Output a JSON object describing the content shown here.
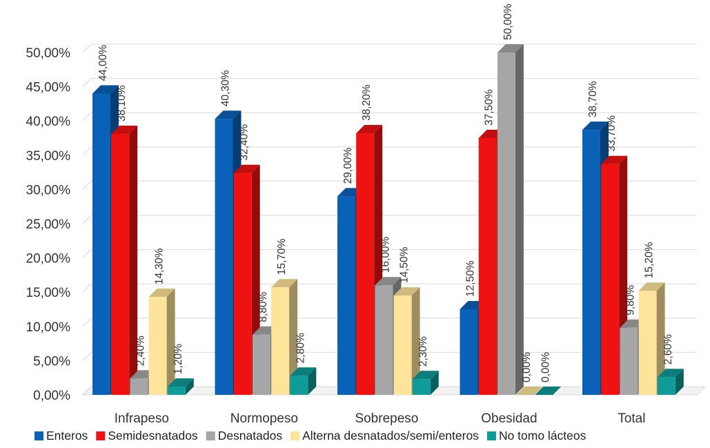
{
  "chart_data": {
    "type": "bar",
    "categories": [
      "Infrapeso",
      "Normopeso",
      "Sobrepeso",
      "Obesidad",
      "Total"
    ],
    "series": [
      {
        "name": "Enteros",
        "color": "#0a62b8",
        "values": [
          44.0,
          40.3,
          29.0,
          12.5,
          38.7
        ],
        "labels": [
          "44,00%",
          "40,30%",
          "29,00%",
          "12,50%",
          "38,70%"
        ]
      },
      {
        "name": "Semidesnatados",
        "color": "#ee1212",
        "values": [
          38.1,
          32.4,
          38.2,
          37.5,
          33.7
        ],
        "labels": [
          "38,10%",
          "32,40%",
          "38,20%",
          "37,50%",
          "33,70%"
        ]
      },
      {
        "name": "Desnatados",
        "color": "#a6a6a6",
        "values": [
          2.4,
          8.8,
          16.0,
          50.0,
          9.8
        ],
        "labels": [
          "2,40%",
          "8,80%",
          "16,00%",
          "50,00%",
          "9,80%"
        ]
      },
      {
        "name": "Alterna desnatados/semi/enteros",
        "color": "#fde49a",
        "values": [
          14.3,
          15.7,
          14.5,
          0.0,
          15.2
        ],
        "labels": [
          "14,30%",
          "15,70%",
          "14,50%",
          "0,00%",
          "15,20%"
        ]
      },
      {
        "name": "No tomo lácteos",
        "color": "#0f9b98",
        "values": [
          1.2,
          2.8,
          2.3,
          0.0,
          2.6
        ],
        "labels": [
          "1,20%",
          "2,80%",
          "2,30%",
          "0,00%",
          "2,60%"
        ]
      }
    ],
    "y_ticks": [
      "0,00%",
      "5,00%",
      "10,00%",
      "15,00%",
      "20,00%",
      "25,00%",
      "30,00%",
      "35,00%",
      "40,00%",
      "45,00%",
      "50,00%"
    ],
    "ylim": [
      0,
      50
    ],
    "grid": true,
    "legend_position": "bottom",
    "title": "",
    "xlabel": "",
    "ylabel": ""
  }
}
